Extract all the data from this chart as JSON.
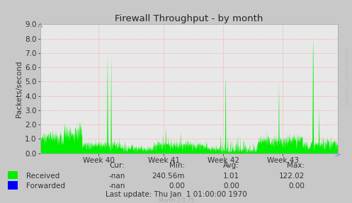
{
  "title": "Firewall Throughput - by month",
  "ylabel": "Packets/second",
  "yticks": [
    0.0,
    1.0,
    2.0,
    3.0,
    4.0,
    5.0,
    6.0,
    7.0,
    8.0,
    9.0
  ],
  "ylim": [
    0.0,
    9.0
  ],
  "week_labels": [
    "Week 40",
    "Week 41",
    "Week 42",
    "Week 43"
  ],
  "bg_color": "#c8c8c8",
  "plot_bg_color": "#e8e8e8",
  "grid_color": "#ff9999",
  "title_color": "#222222",
  "axis_color": "#333333",
  "received_color": "#00ee00",
  "forwarded_color": "#0000ff",
  "watermark_text": "RRDTOOL / TOBI OETIKER",
  "watermark_color": "#bbbbbb",
  "munin_text": "Munin 2.0.75",
  "munin_color": "#aaaaaa",
  "legend_entries": [
    {
      "label": "Received",
      "color": "#00ee00"
    },
    {
      "label": "Forwarded",
      "color": "#0000ff"
    }
  ],
  "stats_headers": [
    "Cur:",
    "Min:",
    "Avg:",
    "Max:"
  ],
  "stats_received": [
    "-nan",
    "240.56m",
    "1.01",
    "122.02"
  ],
  "stats_forwarded": [
    "-nan",
    "0.00",
    "0.00",
    "0.00"
  ],
  "last_update": "Last update: Thu Jan  1 01:00:00 1970"
}
